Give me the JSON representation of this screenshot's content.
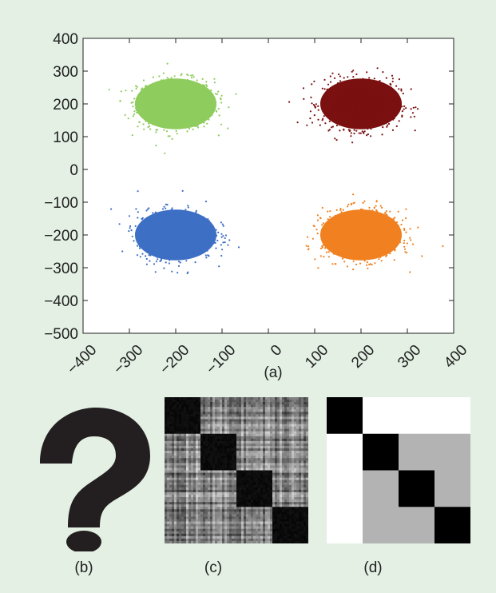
{
  "panels": {
    "a": {
      "caption": "(a)"
    },
    "b": {
      "caption": "(b)",
      "glyph": "?"
    },
    "c": {
      "caption": "(c)"
    },
    "d": {
      "caption": "(d)"
    }
  },
  "chart_data": [
    {
      "type": "scatter",
      "xlim": [
        -400,
        400
      ],
      "ylim": [
        -500,
        400
      ],
      "x_ticks": [
        -400,
        -300,
        -200,
        -100,
        0,
        100,
        200,
        300,
        400
      ],
      "y_ticks": [
        400,
        300,
        200,
        100,
        0,
        -100,
        -200,
        -300,
        -400,
        -500
      ],
      "x_tick_labels": [
        "−400",
        "−300",
        "−200",
        "−100",
        "0",
        "100",
        "200",
        "300",
        "400"
      ],
      "y_tick_labels": [
        "400",
        "300",
        "200",
        "100",
        "0",
        "−100",
        "−200",
        "−300",
        "−400",
        "−500"
      ],
      "grid": false,
      "clusters": [
        {
          "color": "#8fcc5e",
          "center": [
            -200,
            200
          ],
          "spread": [
            55,
            50
          ]
        },
        {
          "color": "#7b1010",
          "center": [
            200,
            200
          ],
          "spread": [
            55,
            50
          ]
        },
        {
          "color": "#3d6fc4",
          "center": [
            -200,
            -200
          ],
          "spread": [
            55,
            50
          ]
        },
        {
          "color": "#f08020",
          "center": [
            200,
            -200
          ],
          "spread": [
            55,
            50
          ]
        }
      ]
    },
    {
      "type": "heatmap",
      "panel": "c",
      "blocks": 4,
      "description_values": "block-structured similarity matrix, dark diagonal blocks",
      "diagonal_value": 0.0
    },
    {
      "type": "heatmap",
      "panel": "d",
      "blocks": 4,
      "matrix": [
        [
          0,
          1,
          1,
          1
        ],
        [
          1,
          0,
          0.7,
          0.7
        ],
        [
          1,
          0.7,
          0,
          0.7
        ],
        [
          1,
          0.7,
          0.7,
          0
        ]
      ]
    }
  ]
}
